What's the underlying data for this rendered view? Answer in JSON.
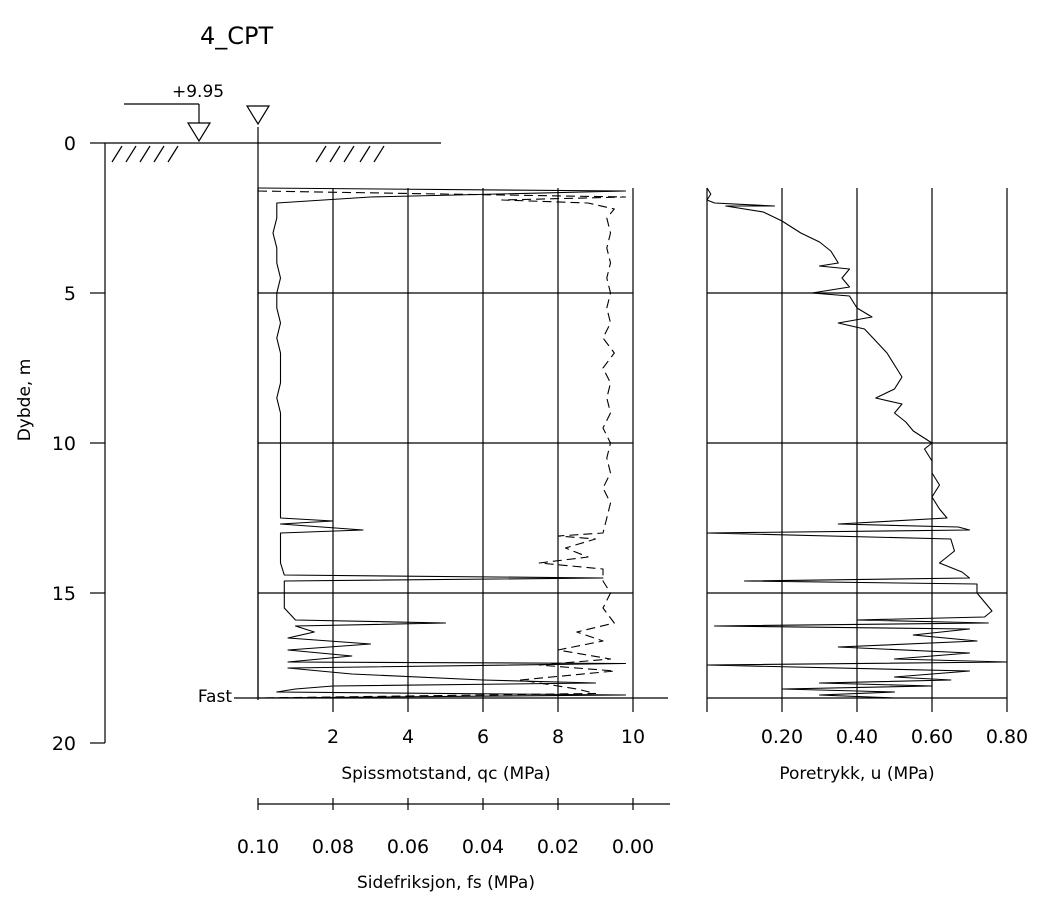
{
  "title": "4_CPT",
  "chart_data": [
    {
      "type": "line",
      "panel": "depth-axis",
      "ylabel": "Dybde, m",
      "yticks": [
        "0",
        "5",
        "10",
        "15",
        "20"
      ],
      "ylim": [
        0,
        20
      ],
      "ground_elevation_label": "+9.95",
      "end_label": "Fast",
      "end_depth": 18.5
    },
    {
      "type": "line",
      "panel": "qc-fs",
      "xlabel": "Spissmotstand, qc (MPa)",
      "xticks": [
        "2",
        "4",
        "6",
        "8",
        "10"
      ],
      "xlim": [
        0,
        10
      ],
      "secondary_xlabel": "Sidefriksjon, fs (MPa)",
      "secondary_xticks": [
        "0.10",
        "0.08",
        "0.06",
        "0.04",
        "0.02",
        "0.00"
      ],
      "secondary_xlim": [
        0.1,
        0.0
      ],
      "grid": true,
      "series": [
        {
          "style": "solid",
          "points": [
            [
              0,
              1.5
            ],
            [
              9.8,
              1.6
            ],
            [
              3,
              1.8
            ],
            [
              0.5,
              2.0
            ],
            [
              0.5,
              2.5
            ],
            [
              0.4,
              3.0
            ],
            [
              0.5,
              3.5
            ],
            [
              0.5,
              4.0
            ],
            [
              0.6,
              4.5
            ],
            [
              0.5,
              5.0
            ],
            [
              0.5,
              5.5
            ],
            [
              0.6,
              6.0
            ],
            [
              0.5,
              6.5
            ],
            [
              0.6,
              7.0
            ],
            [
              0.6,
              7.5
            ],
            [
              0.6,
              8.0
            ],
            [
              0.5,
              8.5
            ],
            [
              0.6,
              9.0
            ],
            [
              0.6,
              9.5
            ],
            [
              0.6,
              10.0
            ],
            [
              0.6,
              10.5
            ],
            [
              0.6,
              11.0
            ],
            [
              0.6,
              11.5
            ],
            [
              0.6,
              12.0
            ],
            [
              0.6,
              12.5
            ],
            [
              2.0,
              12.6
            ],
            [
              0.6,
              12.7
            ],
            [
              2.8,
              12.9
            ],
            [
              0.6,
              13.0
            ],
            [
              0.6,
              13.5
            ],
            [
              0.6,
              14.0
            ],
            [
              0.7,
              14.4
            ],
            [
              9.2,
              14.5
            ],
            [
              0.7,
              14.6
            ],
            [
              0.7,
              15.0
            ],
            [
              0.7,
              15.5
            ],
            [
              1.0,
              15.9
            ],
            [
              5.0,
              16.0
            ],
            [
              1.0,
              16.1
            ],
            [
              1.5,
              16.3
            ],
            [
              0.8,
              16.5
            ],
            [
              3.0,
              16.7
            ],
            [
              0.8,
              16.9
            ],
            [
              2.5,
              17.1
            ],
            [
              0.8,
              17.3
            ],
            [
              9.8,
              17.35
            ],
            [
              0.8,
              17.5
            ],
            [
              2.5,
              17.7
            ],
            [
              6.0,
              17.9
            ],
            [
              9.0,
              18.0
            ],
            [
              2.0,
              18.1
            ],
            [
              1.0,
              18.2
            ],
            [
              0.5,
              18.3
            ],
            [
              9.8,
              18.4
            ],
            [
              0.0,
              18.5
            ]
          ]
        },
        {
          "style": "dashed",
          "points": [
            [
              0,
              1.6
            ],
            [
              9.8,
              1.8
            ],
            [
              6.5,
              1.9
            ],
            [
              8.8,
              2.0
            ],
            [
              9.5,
              2.2
            ],
            [
              9.3,
              2.5
            ],
            [
              9.4,
              3.0
            ],
            [
              9.3,
              3.5
            ],
            [
              9.4,
              4.0
            ],
            [
              9.3,
              4.5
            ],
            [
              9.4,
              5.0
            ],
            [
              9.3,
              5.5
            ],
            [
              9.4,
              6.0
            ],
            [
              9.2,
              6.5
            ],
            [
              9.5,
              7.0
            ],
            [
              9.2,
              7.5
            ],
            [
              9.4,
              8.0
            ],
            [
              9.3,
              8.5
            ],
            [
              9.4,
              9.0
            ],
            [
              9.2,
              9.5
            ],
            [
              9.4,
              10.0
            ],
            [
              9.3,
              10.5
            ],
            [
              9.4,
              11.0
            ],
            [
              9.2,
              11.5
            ],
            [
              9.4,
              12.0
            ],
            [
              9.3,
              12.5
            ],
            [
              9.2,
              13.0
            ],
            [
              8.0,
              13.1
            ],
            [
              9.0,
              13.2
            ],
            [
              8.2,
              13.5
            ],
            [
              8.8,
              13.8
            ],
            [
              7.5,
              14.0
            ],
            [
              9.2,
              14.2
            ],
            [
              9.2,
              14.6
            ],
            [
              9.4,
              15.0
            ],
            [
              9.2,
              15.5
            ],
            [
              9.5,
              16.0
            ],
            [
              8.5,
              16.3
            ],
            [
              9.2,
              16.6
            ],
            [
              8.0,
              16.9
            ],
            [
              9.4,
              17.2
            ],
            [
              7.5,
              17.4
            ],
            [
              9.5,
              17.6
            ],
            [
              7.0,
              17.9
            ],
            [
              8.5,
              18.2
            ],
            [
              9.0,
              18.35
            ],
            [
              0.0,
              18.5
            ]
          ]
        }
      ]
    },
    {
      "type": "line",
      "panel": "pore-pressure",
      "xlabel": "Poretrykk, u (MPa)",
      "xticks": [
        "0.20",
        "0.40",
        "0.60",
        "0.80"
      ],
      "xlim": [
        0,
        0.8
      ],
      "grid": true,
      "series": [
        {
          "style": "solid",
          "points": [
            [
              0,
              1.5
            ],
            [
              0.01,
              1.7
            ],
            [
              0,
              1.9
            ],
            [
              0.02,
              2.0
            ],
            [
              0.18,
              2.1
            ],
            [
              0.05,
              2.1
            ],
            [
              0.15,
              2.3
            ],
            [
              0.2,
              2.6
            ],
            [
              0.25,
              3.0
            ],
            [
              0.3,
              3.3
            ],
            [
              0.33,
              3.6
            ],
            [
              0.35,
              4.0
            ],
            [
              0.3,
              4.1
            ],
            [
              0.38,
              4.2
            ],
            [
              0.36,
              4.5
            ],
            [
              0.38,
              4.8
            ],
            [
              0.28,
              5.0
            ],
            [
              0.38,
              5.1
            ],
            [
              0.4,
              5.5
            ],
            [
              0.44,
              5.8
            ],
            [
              0.35,
              6.0
            ],
            [
              0.42,
              6.2
            ],
            [
              0.45,
              6.6
            ],
            [
              0.48,
              7.0
            ],
            [
              0.5,
              7.4
            ],
            [
              0.52,
              7.8
            ],
            [
              0.5,
              8.2
            ],
            [
              0.45,
              8.5
            ],
            [
              0.52,
              8.7
            ],
            [
              0.5,
              9.0
            ],
            [
              0.53,
              9.3
            ],
            [
              0.55,
              9.6
            ],
            [
              0.6,
              10.0
            ],
            [
              0.58,
              10.2
            ],
            [
              0.6,
              10.6
            ],
            [
              0.6,
              11.0
            ],
            [
              0.62,
              11.4
            ],
            [
              0.6,
              11.8
            ],
            [
              0.62,
              12.2
            ],
            [
              0.64,
              12.5
            ],
            [
              0.35,
              12.7
            ],
            [
              0.67,
              12.8
            ],
            [
              0.7,
              12.9
            ],
            [
              0.0,
              13.0
            ],
            [
              0.65,
              13.2
            ],
            [
              0.66,
              13.6
            ],
            [
              0.62,
              14.0
            ],
            [
              0.68,
              14.3
            ],
            [
              0.7,
              14.5
            ],
            [
              0.1,
              14.6
            ],
            [
              0.72,
              14.7
            ],
            [
              0.72,
              15.0
            ],
            [
              0.74,
              15.3
            ],
            [
              0.76,
              15.6
            ],
            [
              0.74,
              15.8
            ],
            [
              0.4,
              15.9
            ],
            [
              0.75,
              16.0
            ],
            [
              0.02,
              16.1
            ],
            [
              0.7,
              16.2
            ],
            [
              0.55,
              16.4
            ],
            [
              0.72,
              16.6
            ],
            [
              0.35,
              16.8
            ],
            [
              0.7,
              17.0
            ],
            [
              0.5,
              17.2
            ],
            [
              0.8,
              17.3
            ],
            [
              0.0,
              17.4
            ],
            [
              0.7,
              17.6
            ],
            [
              0.5,
              17.8
            ],
            [
              0.65,
              17.9
            ],
            [
              0.3,
              18.0
            ],
            [
              0.6,
              18.1
            ],
            [
              0.2,
              18.2
            ],
            [
              0.5,
              18.3
            ],
            [
              0.3,
              18.4
            ],
            [
              0.5,
              18.5
            ]
          ]
        }
      ]
    }
  ]
}
